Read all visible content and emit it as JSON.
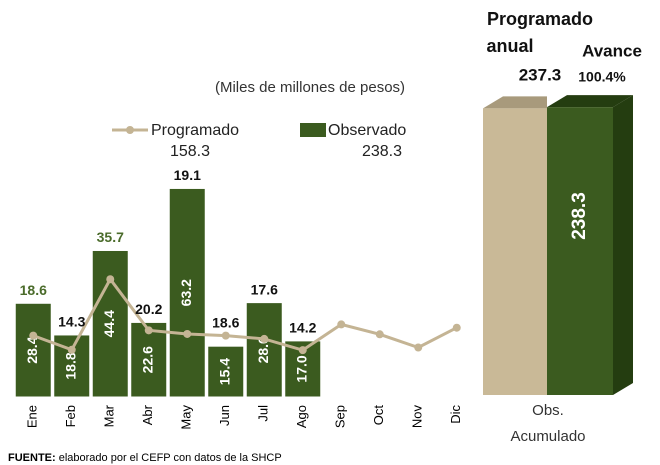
{
  "chart_data": [
    {
      "type": "bar_line",
      "subtitle": "(Miles de millones de pesos)",
      "categories": [
        "Ene",
        "Feb",
        "Mar",
        "Abr",
        "May",
        "Jun",
        "Jul",
        "Ago",
        "Sep",
        "Oct",
        "Nov",
        "Dic"
      ],
      "ylim": [
        0,
        70
      ],
      "series": [
        {
          "name": "Programado",
          "type": "line",
          "color": "#c4b494",
          "total": 158.3,
          "values": [
            18.6,
            14.3,
            35.7,
            20.2,
            19.1,
            18.6,
            17.6,
            14.2,
            22,
            19,
            15,
            21
          ],
          "value_labels": [
            "18.6",
            "14.3",
            "35.7",
            "20.2",
            "19.1",
            "18.6",
            "17.6",
            "14.2",
            null,
            null,
            null,
            null
          ]
        },
        {
          "name": "Observado",
          "type": "bar",
          "color": "#3b5b1f",
          "total": 238.3,
          "values": [
            28.4,
            18.8,
            44.4,
            22.6,
            63.2,
            15.4,
            28.6,
            17.0,
            null,
            null,
            null,
            null
          ],
          "value_labels": [
            "28.4",
            "18.8",
            "44.4",
            "22.6",
            "63.2",
            "15.4",
            "28.6",
            "17.0",
            null,
            null,
            null,
            null
          ]
        }
      ]
    },
    {
      "type": "bar",
      "categories": [
        "Obs. Acumulado"
      ],
      "ylim": [
        0,
        250
      ],
      "series": [
        {
          "name": "Programado anual",
          "color": "#c9b997",
          "values": [
            237.3
          ],
          "value_labels": [
            "237.3"
          ]
        },
        {
          "color": "#3b5b1f",
          "values": [
            238.3
          ],
          "value_labels": [
            "238.3"
          ]
        }
      ],
      "annotation": {
        "label": "Avance",
        "value": 100.4,
        "value_label": "100.4%"
      }
    }
  ],
  "source": {
    "label": "FUENTE:",
    "text": "elaborado por el CEFP con datos de la SHCP"
  }
}
